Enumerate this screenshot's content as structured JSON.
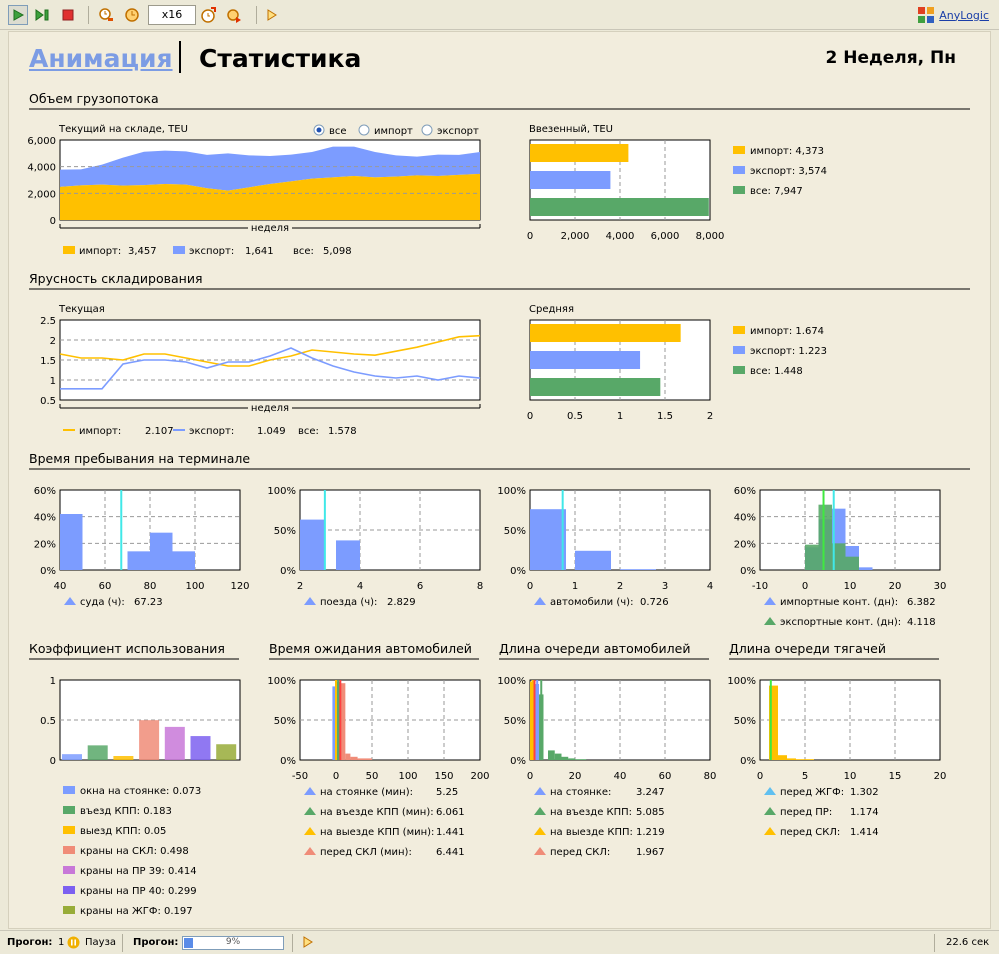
{
  "toolbar": {
    "speed": "x16",
    "logo": "AnyLogic",
    "icons": [
      "run-icon",
      "step-icon",
      "stop-icon",
      "slower-icon",
      "pause-time-icon",
      "faster-icon",
      "realtime-icon",
      "highlight-icon",
      "debug-icon"
    ]
  },
  "header": {
    "tab_animation": "Анимация",
    "tab_statistics": "Статистика",
    "week": "2 Неделя, Пн"
  },
  "sections": {
    "volume": "Объем грузопотока",
    "tiers": "Ярусность складирования",
    "stay": "Время пребывания на терминале",
    "util": "Коэффициент использования",
    "truck_wait": "Время ожидания автомобилей",
    "truck_queue": "Длина очереди автомобилей",
    "tractor_queue": "Длина очереди тягачей"
  },
  "radio": {
    "all": "все",
    "import": "импорт",
    "export": "экспорт"
  },
  "colors": {
    "import": "#ffc000",
    "export": "#7c9cff",
    "all": "#58a868",
    "cyan": "#40e8e8",
    "green": "#40e840",
    "red": "#ff4040",
    "salmon": "#f08c78",
    "panel": "#f2eddd"
  },
  "chart_data": [
    {
      "id": "stock",
      "type": "area",
      "title": "Текущий на складе, TEU",
      "xlabel": "неделя",
      "ylim": [
        0,
        6000
      ],
      "yticks": [
        "0",
        "2,000",
        "4,000",
        "6,000"
      ],
      "x": [
        0,
        1,
        2,
        3,
        4,
        5,
        6,
        7,
        8,
        9,
        10,
        11,
        12,
        13,
        14,
        15,
        16,
        17,
        18,
        19,
        20
      ],
      "series": [
        {
          "name": "импорт",
          "values": [
            2480,
            2600,
            2650,
            2580,
            2620,
            2700,
            2650,
            2380,
            2200,
            2450,
            2700,
            2900,
            3100,
            3200,
            3300,
            3200,
            3250,
            3350,
            3300,
            3380,
            3457
          ]
        },
        {
          "name": "экспорт",
          "values": [
            1300,
            1200,
            1500,
            2100,
            2500,
            2500,
            2500,
            2500,
            2800,
            2400,
            2100,
            2000,
            2000,
            2300,
            2200,
            1900,
            1600,
            1400,
            1600,
            1500,
            1641
          ]
        }
      ],
      "legend": [
        {
          "label": "импорт:",
          "value": "3,457"
        },
        {
          "label": "экспорт:",
          "value": "1,641"
        },
        {
          "label": "все:",
          "value": "5,098"
        }
      ]
    },
    {
      "id": "entered",
      "type": "bar",
      "title": "Ввезенный, TEU",
      "xlim": [
        0,
        8000
      ],
      "xticks": [
        "0",
        "2,000",
        "4,000",
        "6,000",
        "8,000"
      ],
      "categories": [
        "импорт",
        "экспорт",
        "все"
      ],
      "values": [
        4373,
        3574,
        7947
      ],
      "legend": [
        {
          "label": "импорт:",
          "value": "4,373"
        },
        {
          "label": "экспорт:",
          "value": "3,574"
        },
        {
          "label": "все:",
          "value": "7,947"
        }
      ]
    },
    {
      "id": "tiers_current",
      "type": "line",
      "title": "Текущая",
      "xlabel": "неделя",
      "ylim": [
        0.5,
        2.5
      ],
      "yticks": [
        "0.5",
        "1",
        "1.5",
        "2",
        "2.5"
      ],
      "x": [
        0,
        1,
        2,
        3,
        4,
        5,
        6,
        7,
        8,
        9,
        10,
        11,
        12,
        13,
        14,
        15,
        16,
        17,
        18,
        19,
        20
      ],
      "series": [
        {
          "name": "импорт",
          "values": [
            1.65,
            1.55,
            1.55,
            1.5,
            1.65,
            1.65,
            1.55,
            1.45,
            1.35,
            1.35,
            1.5,
            1.6,
            1.75,
            1.7,
            1.65,
            1.62,
            1.72,
            1.82,
            1.95,
            2.08,
            2.107
          ]
        },
        {
          "name": "экспорт",
          "values": [
            0.78,
            0.78,
            0.78,
            1.4,
            1.5,
            1.5,
            1.45,
            1.3,
            1.45,
            1.45,
            1.6,
            1.8,
            1.55,
            1.35,
            1.2,
            1.1,
            1.05,
            1.1,
            1.0,
            1.1,
            1.049
          ]
        }
      ],
      "legend": [
        {
          "label": "импорт:",
          "value": "2.107"
        },
        {
          "label": "экспорт:",
          "value": "1.049"
        },
        {
          "label": "все:",
          "value": "1.578"
        }
      ]
    },
    {
      "id": "tiers_avg",
      "type": "bar",
      "title": "Средняя",
      "xlim": [
        0,
        2
      ],
      "xticks": [
        "0",
        "0.5",
        "1",
        "1.5",
        "2"
      ],
      "categories": [
        "импорт",
        "экспорт",
        "все"
      ],
      "values": [
        1.674,
        1.223,
        1.448
      ],
      "legend": [
        {
          "label": "импорт:",
          "value": "1.674"
        },
        {
          "label": "экспорт:",
          "value": "1.223"
        },
        {
          "label": "все:",
          "value": "1.448"
        }
      ]
    },
    {
      "id": "ships",
      "type": "bar",
      "xlim": [
        40,
        120
      ],
      "ylim": [
        0,
        0.6
      ],
      "xticks": [
        "40",
        "60",
        "80",
        "100",
        "120"
      ],
      "yticks": [
        "0%",
        "20%",
        "40%",
        "60%"
      ],
      "bars": [
        [
          40,
          50,
          0.42
        ],
        [
          60,
          70,
          0
        ],
        [
          70,
          80,
          0.14
        ],
        [
          80,
          90,
          0.28
        ],
        [
          90,
          100,
          0.14
        ]
      ],
      "mean": 67.23,
      "legend": [
        {
          "label": "суда (ч):",
          "value": "67.23"
        }
      ]
    },
    {
      "id": "trains",
      "type": "bar",
      "xlim": [
        2,
        8
      ],
      "ylim": [
        0,
        1
      ],
      "xticks": [
        "2",
        "4",
        "6",
        "8"
      ],
      "yticks": [
        "0%",
        "50%",
        "100%"
      ],
      "bars": [
        [
          2,
          2.8,
          0.63
        ],
        [
          3.2,
          4,
          0.37
        ]
      ],
      "mean": 2.829,
      "legend": [
        {
          "label": "поезда (ч):",
          "value": "2.829"
        }
      ]
    },
    {
      "id": "trucks",
      "type": "bar",
      "xlim": [
        0,
        4
      ],
      "ylim": [
        0,
        1
      ],
      "xticks": [
        "0",
        "1",
        "2",
        "3",
        "4"
      ],
      "yticks": [
        "0%",
        "50%",
        "100%"
      ],
      "bars": [
        [
          0,
          0.8,
          0.76
        ],
        [
          1,
          1.8,
          0.24
        ],
        [
          2,
          2.8,
          0.01
        ]
      ],
      "mean": 0.726,
      "legend": [
        {
          "label": "автомобили (ч):",
          "value": "0.726"
        }
      ]
    },
    {
      "id": "containers",
      "type": "bar",
      "xlim": [
        -10,
        30
      ],
      "ylim": [
        0,
        0.6
      ],
      "xticks": [
        "-10",
        "0",
        "10",
        "20",
        "30"
      ],
      "yticks": [
        "0%",
        "20%",
        "40%",
        "60%"
      ],
      "series": [
        {
          "name": "импортные конт. (дн)",
          "bars": [
            [
              0,
              3,
              0.17
            ],
            [
              3,
              6,
              0.38
            ],
            [
              6,
              9,
              0.46
            ],
            [
              9,
              12,
              0.18
            ],
            [
              12,
              15,
              0.02
            ]
          ],
          "mean": 6.382
        },
        {
          "name": "экспортные конт. (дн)",
          "bars": [
            [
              0,
              3,
              0.19
            ],
            [
              3,
              6,
              0.49
            ],
            [
              6,
              9,
              0.2
            ],
            [
              9,
              12,
              0.1
            ]
          ],
          "mean": 4.118
        }
      ],
      "legend": [
        {
          "label": "импортные конт. (дн):",
          "value": "6.382"
        },
        {
          "label": "экспортные конт. (дн):",
          "value": "4.118"
        }
      ]
    },
    {
      "id": "util",
      "type": "bar",
      "ylim": [
        0,
        1
      ],
      "yticks": [
        "0",
        "0.5",
        "1"
      ],
      "categories": [
        "окна на стоянке",
        "въезд КПП",
        "выезд КПП",
        "краны на СКЛ",
        "краны на ПР 39",
        "краны на ПР 40",
        "краны на ЖГФ"
      ],
      "values": [
        0.073,
        0.183,
        0.05,
        0.498,
        0.414,
        0.299,
        0.197
      ],
      "colors": [
        "#7c9cff",
        "#58a868",
        "#ffc000",
        "#f08c78",
        "#c878d8",
        "#7c60f0",
        "#98ac38"
      ],
      "legend": [
        {
          "label": "окна на стоянке:",
          "value": "0.073"
        },
        {
          "label": "въезд КПП:",
          "value": "0.183"
        },
        {
          "label": "выезд КПП:",
          "value": "0.05"
        },
        {
          "label": "краны на СКЛ:",
          "value": "0.498"
        },
        {
          "label": "краны на ПР 39:",
          "value": "0.414"
        },
        {
          "label": "краны на ПР 40:",
          "value": "0.299"
        },
        {
          "label": "краны на ЖГФ:",
          "value": "0.197"
        }
      ]
    },
    {
      "id": "truck_wait",
      "type": "bar",
      "xlim": [
        -50,
        200
      ],
      "ylim": [
        0,
        1
      ],
      "xticks": [
        "-50",
        "0",
        "50",
        "100",
        "150",
        "200"
      ],
      "yticks": [
        "0%",
        "50%",
        "100%"
      ],
      "bars": [
        [
          -5,
          0,
          0.92,
          "#7c9cff"
        ],
        [
          0,
          5,
          0.98,
          "#58a868"
        ],
        [
          5,
          13,
          0.96,
          "#f08c78"
        ],
        [
          13,
          20,
          0.08,
          "#f08c78"
        ],
        [
          20,
          30,
          0.04,
          "#f08c78"
        ],
        [
          30,
          50,
          0.02,
          "#f08c78"
        ]
      ],
      "lines": [
        [
          0,
          "#ffc000"
        ],
        [
          3,
          "#58a868"
        ],
        [
          6,
          "#ff4040"
        ]
      ],
      "legend": [
        {
          "label": "на стоянке (мин):",
          "value": "5.25"
        },
        {
          "label": "на въезде КПП (мин):",
          "value": "6.061"
        },
        {
          "label": "на выезде КПП (мин):",
          "value": "1.441"
        },
        {
          "label": "перед СКЛ (мин):",
          "value": "6.441"
        }
      ]
    },
    {
      "id": "truck_queue",
      "type": "bar",
      "xlim": [
        0,
        80
      ],
      "ylim": [
        0,
        1
      ],
      "xticks": [
        "0",
        "20",
        "40",
        "60",
        "80"
      ],
      "yticks": [
        "0%",
        "50%",
        "100%"
      ],
      "bars": [
        [
          0,
          2,
          0.98,
          "#ffc000"
        ],
        [
          2,
          4,
          0.95,
          "#7c9cff"
        ],
        [
          4,
          6,
          0.82,
          "#58a868"
        ],
        [
          8,
          11,
          0.12,
          "#58a868"
        ],
        [
          11,
          14,
          0.08,
          "#58a868"
        ],
        [
          14,
          17,
          0.04,
          "#58a868"
        ],
        [
          17,
          20,
          0.02,
          "#58a868"
        ],
        [
          20,
          25,
          0.01,
          "#58a868"
        ]
      ],
      "lines": [
        [
          1.2,
          "#ffc000"
        ],
        [
          2,
          "#ff4040"
        ],
        [
          3.2,
          "#7c9cff"
        ],
        [
          5,
          "#58a868"
        ]
      ],
      "legend": [
        {
          "label": "на стоянке:",
          "value": "3.247"
        },
        {
          "label": "на въезде КПП:",
          "value": "5.085"
        },
        {
          "label": "на выезде КПП:",
          "value": "1.219"
        },
        {
          "label": "перед СКЛ:",
          "value": "1.967"
        }
      ]
    },
    {
      "id": "tractor_queue",
      "type": "bar",
      "xlim": [
        0,
        20
      ],
      "ylim": [
        0,
        1
      ],
      "xticks": [
        "0",
        "5",
        "10",
        "15",
        "20"
      ],
      "yticks": [
        "0%",
        "50%",
        "100%"
      ],
      "bars": [
        [
          1,
          2,
          0.93,
          "#ffc000"
        ],
        [
          2,
          3,
          0.06,
          "#ffc000"
        ],
        [
          3,
          4,
          0.02,
          "#ffc000"
        ],
        [
          4,
          5,
          0.01,
          "#ffc000"
        ],
        [
          5,
          6,
          0.01,
          "#ffc000"
        ]
      ],
      "lines": [
        [
          1.2,
          "#40e840"
        ]
      ],
      "legend": [
        {
          "label": "перед ЖГФ:",
          "value": "1.302"
        },
        {
          "label": "перед ПР:",
          "value": "1.174"
        },
        {
          "label": "перед СКЛ:",
          "value": "1.414"
        }
      ]
    }
  ],
  "status": {
    "run_label": "Прогон:",
    "run_number": "1",
    "pause_label": "Пауза",
    "progress_label": "Прогон:",
    "progress": 0.09,
    "progress_text": "9%",
    "time": "22.6 сек"
  }
}
